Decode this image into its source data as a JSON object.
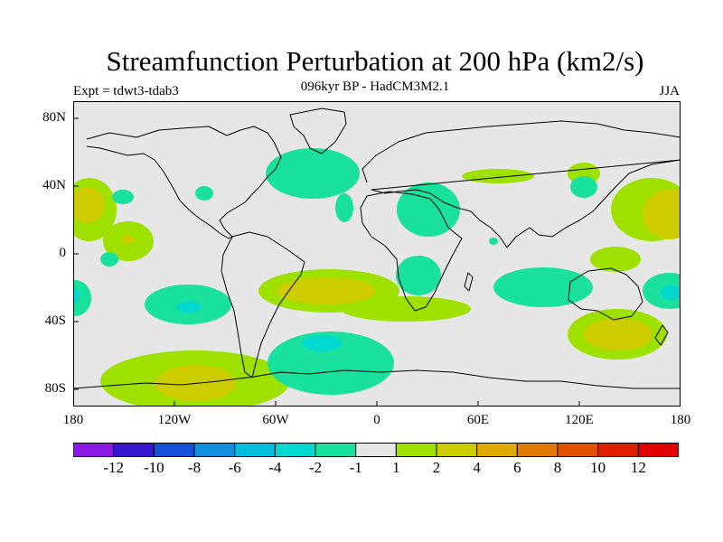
{
  "title": "Streamfunction Perturbation at 200 hPa (km2/s)",
  "subtitle": "096kyr BP - HadCM3M2.1",
  "left_label": "Expt = tdwt3-tdab3",
  "right_label": "JJA",
  "lat_labels": [
    "80N",
    "40N",
    "0",
    "40S",
    "80S"
  ],
  "lon_labels": [
    "180",
    "120W",
    "60W",
    "0",
    "60E",
    "120E",
    "180"
  ],
  "chart_data": {
    "type": "heatmap",
    "map_projection": "cylindrical-equidistant",
    "lon_range": [
      -180,
      180
    ],
    "lat_range": [
      -90,
      90
    ],
    "colorbar": {
      "labels": [
        "-12",
        "-10",
        "-8",
        "-6",
        "-4",
        "-2",
        "-1",
        "1",
        "2",
        "4",
        "6",
        "8",
        "10",
        "12"
      ],
      "colors": [
        "#8b1ae6",
        "#3a18d2",
        "#1550d6",
        "#0f8fdc",
        "#00bedd",
        "#00d8d0",
        "#19e09c",
        "#e6e6e6",
        "#9ee000",
        "#cccc00",
        "#e0aa00",
        "#e07a00",
        "#e05000",
        "#e02000",
        "#e00000"
      ]
    }
  },
  "colors": {
    "background": "#e6e6e6",
    "coast": "#000000"
  }
}
